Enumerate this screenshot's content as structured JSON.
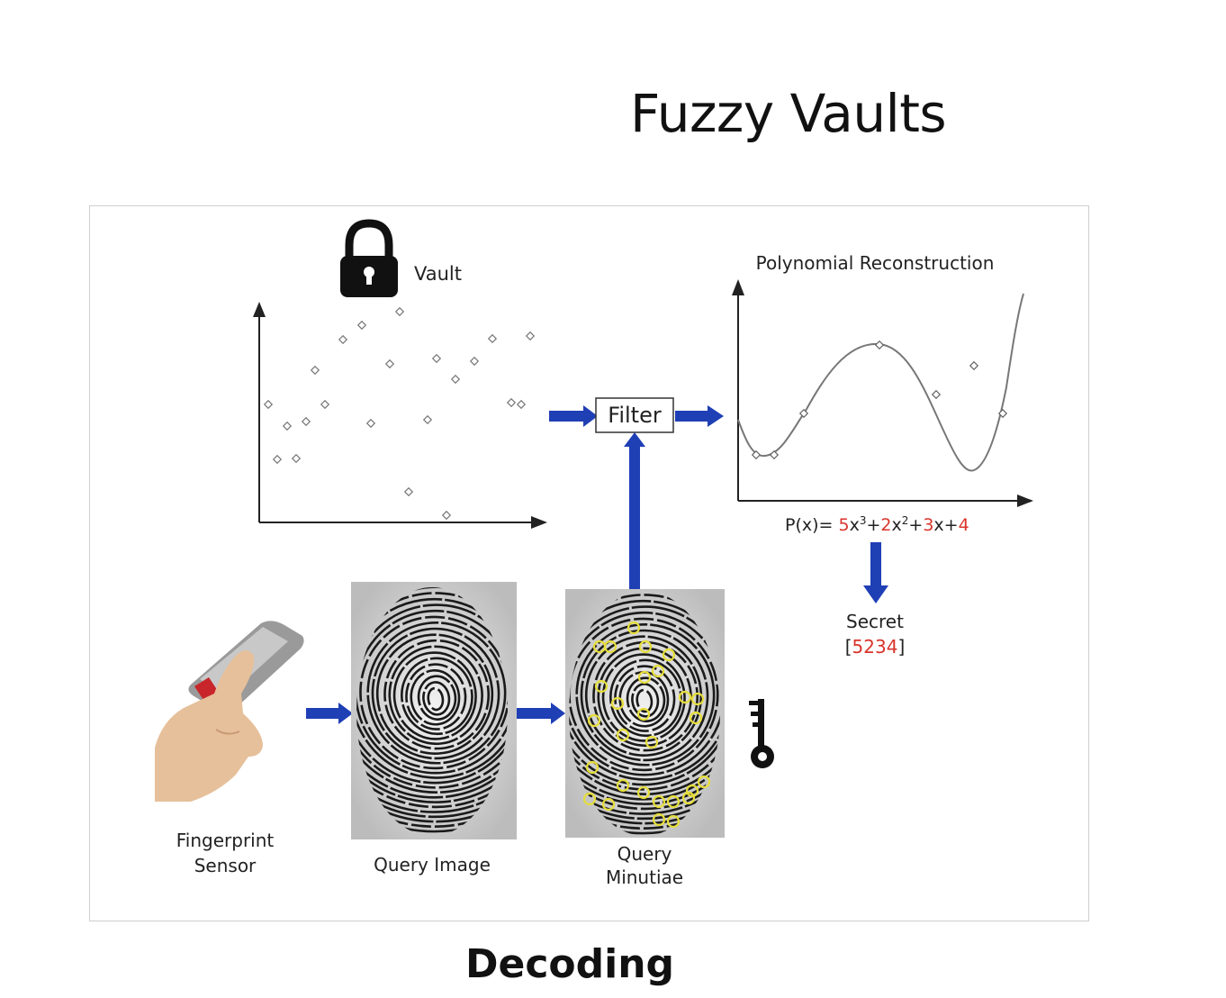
{
  "title": "Fuzzy Vaults",
  "caption": "Decoding",
  "labels": {
    "vault": "Vault",
    "filter": "Filter",
    "poly_title": "Polynomial Reconstruction",
    "secret": "Secret",
    "sensor_line1": "Fingerprint",
    "sensor_line2": "Sensor",
    "query_image": "Query Image",
    "minutiae_line1": "Query",
    "minutiae_line2": "Minutiae"
  },
  "polynomial": {
    "prefix": "P(x)=",
    "parts": [
      {
        "text": "5",
        "accent": true
      },
      {
        "text": "x",
        "accent": false
      },
      {
        "text": "3",
        "accent": false,
        "sup": true
      },
      {
        "text": "+",
        "accent": false
      },
      {
        "text": "2",
        "accent": true
      },
      {
        "text": "x",
        "accent": false
      },
      {
        "text": "2",
        "accent": false,
        "sup": true
      },
      {
        "text": "+",
        "accent": false
      },
      {
        "text": "3",
        "accent": true
      },
      {
        "text": "x+",
        "accent": false
      },
      {
        "text": "4",
        "accent": true
      }
    ]
  },
  "secret_value": {
    "open": "[",
    "digits": "5234",
    "close": "]"
  },
  "colors": {
    "arrow": "#1f3fb5",
    "accent": "#d9342b",
    "minutia": "#e6de3a"
  },
  "icons": [
    "padlock-icon",
    "key-icon",
    "fingerprint-sensor-icon"
  ]
}
